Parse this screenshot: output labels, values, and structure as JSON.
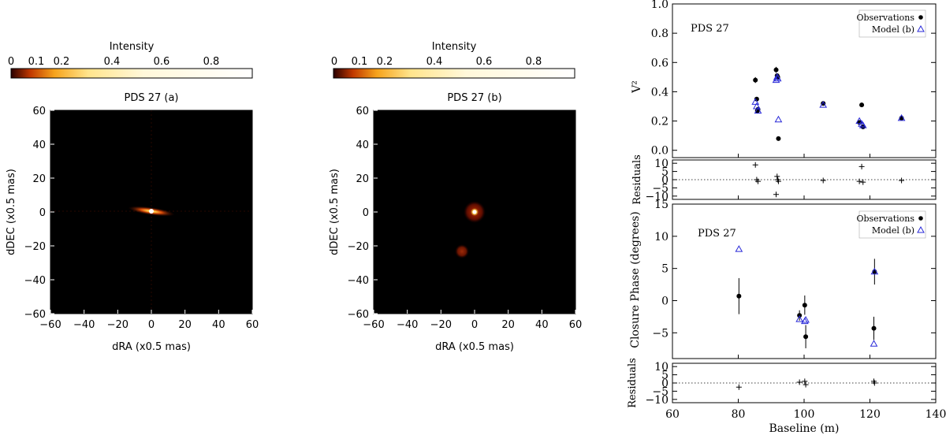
{
  "colors": {
    "background": "#ffffff",
    "image_bg": "#000000",
    "model_marker": "#2a2ad8",
    "obs_marker": "#000000"
  },
  "chart_data": [
    {
      "type": "heatmap",
      "title": "PDS 27 (a)",
      "colorbar_label": "Intensity",
      "colorbar_ticks": [
        "0",
        "0.1",
        "0.2",
        "0.4",
        "0.6",
        "0.8"
      ],
      "xlabel": "dRA (x0.5 mas)",
      "ylabel": "dDEC (x0.5 mas)",
      "xlim": [
        -60,
        60
      ],
      "ylim": [
        -60,
        60
      ],
      "xticks": [
        "−60",
        "−40",
        "−20",
        "0",
        "20",
        "40",
        "60"
      ],
      "yticks": [
        "−60",
        "−40",
        "−20",
        "0",
        "20",
        "40",
        "60"
      ],
      "sources": [
        {
          "x": 0,
          "y": 0,
          "peak": 1.0,
          "shape": "elongated disk",
          "extent_x": [
            -10,
            10
          ],
          "extent_y": [
            -2,
            2
          ]
        }
      ]
    },
    {
      "type": "heatmap",
      "title": "PDS 27 (b)",
      "colorbar_label": "Intensity",
      "colorbar_ticks": [
        "0",
        "0.1",
        "0.2",
        "0.4",
        "0.6",
        "0.8"
      ],
      "xlabel": "dRA (x0.5 mas)",
      "ylabel": "dDEC (x0.5 mas)",
      "xlim": [
        -60,
        60
      ],
      "ylim": [
        -60,
        60
      ],
      "xticks": [
        "−60",
        "−40",
        "−20",
        "0",
        "20",
        "40",
        "60"
      ],
      "yticks": [
        "−60",
        "−40",
        "−20",
        "0",
        "20",
        "40",
        "60"
      ],
      "sources": [
        {
          "x": 0,
          "y": 0,
          "peak": 1.0,
          "shape": "point with halo"
        },
        {
          "x": -7,
          "y": -23,
          "peak": 0.2,
          "shape": "gaussian"
        }
      ]
    },
    {
      "type": "scatter",
      "annotation": "PDS 27",
      "ylabel": "V²",
      "xlim": [
        60,
        140
      ],
      "ylim": [
        -0.05,
        1.0
      ],
      "yticks": [
        "0.0",
        "0.2",
        "0.4",
        "0.6",
        "0.8",
        "1.0"
      ],
      "legend": "top-right",
      "series": [
        {
          "name": "Observations",
          "marker": "filled circle",
          "x": [
            85.2,
            85.6,
            86.0,
            85.8,
            91.5,
            91.8,
            92.0,
            92.2,
            105.8,
            116.8,
            117.5,
            117.9,
            129.6
          ],
          "y": [
            0.48,
            0.35,
            0.28,
            0.27,
            0.55,
            0.51,
            0.5,
            0.08,
            0.32,
            0.19,
            0.31,
            0.16,
            0.22
          ],
          "yerr": [
            0.02,
            0.015,
            0.015,
            0.015,
            0.02,
            0.015,
            0.015,
            0.01,
            0.01,
            0.01,
            0.015,
            0.01,
            0.01
          ]
        },
        {
          "name": "Model (b)",
          "marker": "open triangle",
          "x": [
            85.2,
            85.6,
            86.0,
            91.5,
            91.8,
            92.0,
            92.2,
            105.8,
            116.8,
            117.5,
            117.9,
            129.6
          ],
          "y": [
            0.33,
            0.3,
            0.27,
            0.48,
            0.5,
            0.49,
            0.21,
            0.31,
            0.2,
            0.18,
            0.17,
            0.22
          ]
        }
      ]
    },
    {
      "type": "scatter",
      "ylabel": "Residuals",
      "xlim": [
        60,
        140
      ],
      "ylim": [
        -12,
        12
      ],
      "yticks": [
        "−10",
        "−5",
        "0",
        "5",
        "10"
      ],
      "series": [
        {
          "name": "",
          "marker": "plus",
          "x": [
            85.2,
            85.6,
            86.0,
            91.5,
            91.8,
            92.0,
            92.2,
            105.8,
            116.8,
            117.5,
            117.9,
            129.6
          ],
          "y": [
            9,
            0,
            -1,
            -9,
            2,
            0,
            -1,
            -0.5,
            -1,
            8,
            -1.5,
            -0.5
          ]
        }
      ]
    },
    {
      "type": "scatter",
      "annotation": "PDS 27",
      "ylabel": "Closure Phase (degrees)",
      "xlim": [
        60,
        140
      ],
      "ylim": [
        -9,
        15
      ],
      "yticks": [
        "−5",
        "0",
        "5",
        "10",
        "15"
      ],
      "legend": "top-right",
      "series": [
        {
          "name": "Observations",
          "marker": "filled circle",
          "x": [
            80.2,
            98.6,
            100.2,
            100.5,
            121.2,
            121.4
          ],
          "y": [
            0.7,
            -2.3,
            -0.7,
            -5.6,
            -4.3,
            4.5
          ],
          "yerr": [
            2.8,
            0.8,
            1.5,
            1.8,
            1.8,
            2.0
          ]
        },
        {
          "name": "Model (b)",
          "marker": "open triangle",
          "x": [
            80.2,
            98.6,
            100.2,
            100.5,
            121.2,
            121.4
          ],
          "y": [
            8.0,
            -2.9,
            -3.2,
            -3.0,
            -6.7,
            4.5
          ]
        }
      ]
    },
    {
      "type": "scatter",
      "ylabel": "Residuals",
      "xlabel": "Baseline (m)",
      "xlim": [
        60,
        140
      ],
      "ylim": [
        -12,
        12
      ],
      "xticks": [
        "60",
        "80",
        "100",
        "120",
        "140"
      ],
      "yticks": [
        "−10",
        "−5",
        "0",
        "5",
        "10"
      ],
      "series": [
        {
          "name": "",
          "marker": "plus",
          "x": [
            80.2,
            98.6,
            100.2,
            100.5,
            121.2,
            121.4
          ],
          "y": [
            -2.5,
            0.5,
            1.0,
            -1.0,
            1.0,
            0.0
          ]
        }
      ]
    }
  ]
}
